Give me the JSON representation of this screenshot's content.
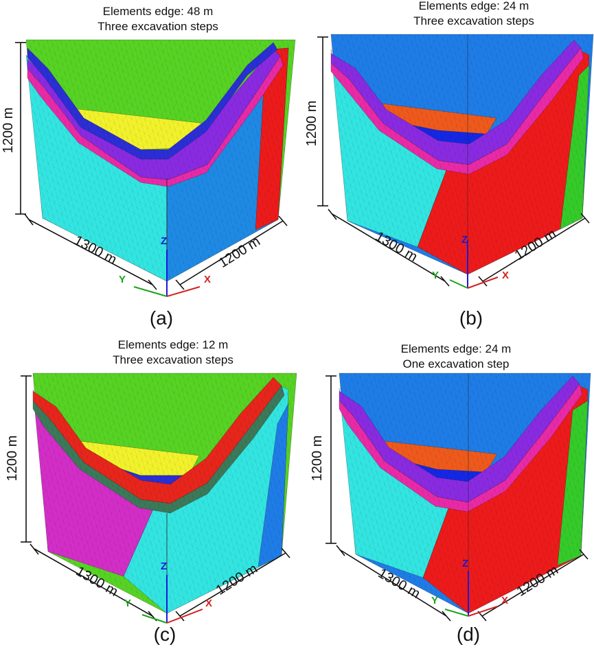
{
  "panels": [
    {
      "id": "a",
      "title_line1": "Elements edge: 48 m",
      "title_line2": "Three excavation  steps",
      "caption": "(a)",
      "dims": {
        "height": "1200 m",
        "left": "1300 m",
        "right": "1200 m"
      },
      "colors": {
        "top": "#57d424",
        "left": "#33e6e2",
        "right": "#1f8ae5",
        "strip": "#ee1b1b",
        "bench": "#f3f32c",
        "liner1": "#8a2be2",
        "liner2": "#ea2aa8",
        "liner3": "#2b2fd6"
      }
    },
    {
      "id": "b",
      "title_line1": "Elements edge: 24 m",
      "title_line2": "Three excavation  steps",
      "caption": "(b)",
      "dims": {
        "height": "1200 m",
        "left": "1300 m",
        "right": "1200 m"
      },
      "colors": {
        "top": "#1f7de8",
        "left": "#33e6e2",
        "right": "#ee1b1b",
        "strip": "#35cc2a",
        "bench": "#f05a1c",
        "liner1": "#8a2be2",
        "liner2": "#ea2aa8",
        "liner3": "#1428e6"
      }
    },
    {
      "id": "c",
      "title_line1": "Elements edge: 12 m",
      "title_line2": "Three excavation  steps",
      "caption": "(c)",
      "dims": {
        "height": "1200 m",
        "left": "1300 m",
        "right": "1200 m"
      },
      "colors": {
        "top": "#57d424",
        "left": "#d42ec8",
        "right": "#33e6e2",
        "strip": "#1f7de8",
        "bench": "#f3f32c",
        "liner1": "#e8261c",
        "liner2": "#3c7a5a",
        "liner3": "#2b2fd6"
      }
    },
    {
      "id": "d",
      "title_line1": "Elements edge: 24 m",
      "title_line2": "One excavation  step",
      "caption": "(d)",
      "dims": {
        "height": "1200 m",
        "left": "1300 m",
        "right": "1200 m"
      },
      "colors": {
        "top": "#1f7de8",
        "left": "#33e6e2",
        "right": "#ee1b1b",
        "strip": "#35cc2a",
        "bench": "#f05a1c",
        "liner1": "#8a2be2",
        "liner2": "#ea2aa8",
        "liner3": "#1428e6"
      }
    }
  ],
  "axes": {
    "x": "X",
    "y": "Y",
    "z": "Z",
    "x_color": "#d62020",
    "y_color": "#1aa31a",
    "z_color": "#1a1ad6"
  }
}
